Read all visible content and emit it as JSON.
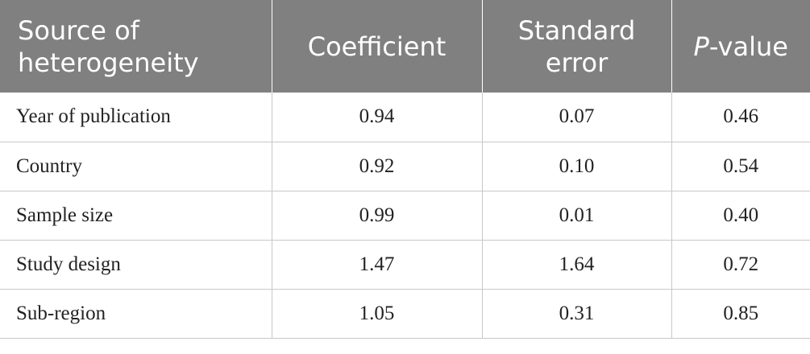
{
  "table": {
    "columns": [
      "Source of heterogeneity",
      "Coefficient",
      "Standard error",
      "P-value"
    ],
    "rows": [
      [
        "Year of publication",
        "0.94",
        "0.07",
        "0.46"
      ],
      [
        "Country",
        "0.92",
        "0.10",
        "0.54"
      ],
      [
        "Sample size",
        "0.99",
        "0.01",
        "0.40"
      ],
      [
        "Study design",
        "1.47",
        "1.64",
        "0.72"
      ],
      [
        "Sub-region",
        "1.05",
        "0.31",
        "0.85"
      ]
    ]
  }
}
